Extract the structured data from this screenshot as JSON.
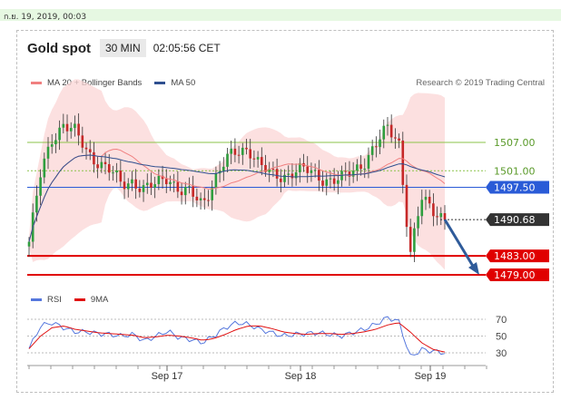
{
  "datetime": "ก.ย. 19, 2019, 00:03",
  "header": {
    "title": "Gold spot",
    "timeframe": "30 MIN",
    "clock": "02:05:56 CET"
  },
  "legend": {
    "items": [
      {
        "label": "MA 20 + Bollinger Bands",
        "color": "#f08080"
      },
      {
        "label": "MA 50",
        "color": "#2f4f8f"
      }
    ],
    "credit": "Research © 2019 Trading Central"
  },
  "rsi_legend": {
    "items": [
      {
        "label": "RSI",
        "color": "#5577dd"
      },
      {
        "label": "9MA",
        "color": "#e01010"
      }
    ]
  },
  "chart_data": {
    "type": "candlestick",
    "instrument": "Gold spot",
    "timeframe": "30 MIN",
    "x_ticks": [
      "Sep 17",
      "Sep 18",
      "Sep 19"
    ],
    "levels": [
      {
        "value": 1507.0,
        "label": "1507.00",
        "kind": "resistance",
        "color": "#8bc34a"
      },
      {
        "value": 1501.0,
        "label": "1501.00",
        "kind": "pivot",
        "color": "#8bc34a"
      },
      {
        "value": 1497.5,
        "label": "1497.50",
        "kind": "current-level",
        "color": "#2a5bd7"
      },
      {
        "value": 1490.68,
        "label": "1490.68",
        "kind": "last-price",
        "color": "#333333"
      },
      {
        "value": 1483.0,
        "label": "1483.00",
        "kind": "support",
        "color": "#e00000"
      },
      {
        "value": 1479.0,
        "label": "1479.00",
        "kind": "support",
        "color": "#e00000"
      }
    ],
    "arrow": {
      "from": 1490.68,
      "to": 1479.0,
      "direction": "down",
      "color": "#2f5b9a"
    },
    "price_path": [
      1486,
      1500,
      1508,
      1511,
      1509,
      1505,
      1503,
      1501,
      1498,
      1499,
      1497,
      1498,
      1500,
      1497,
      1496,
      1494,
      1499,
      1503,
      1505,
      1506,
      1502,
      1500,
      1500,
      1501,
      1501,
      1500,
      1499,
      1499,
      1501,
      1503,
      1506,
      1510,
      1508,
      1483,
      1495,
      1493,
      1491
    ],
    "rsi": {
      "levels": [
        70,
        50,
        30
      ],
      "rsi_values": [
        35,
        62,
        66,
        60,
        55,
        55,
        53,
        52,
        50,
        52,
        44,
        50,
        56,
        48,
        46,
        42,
        50,
        60,
        66,
        64,
        58,
        54,
        50,
        52,
        53,
        54,
        52,
        50,
        54,
        58,
        64,
        72,
        68,
        25,
        34,
        32,
        30
      ],
      "ma9_values": [
        35,
        50,
        60,
        62,
        58,
        56,
        54,
        53,
        52,
        51,
        48,
        49,
        51,
        50,
        48,
        45,
        47,
        52,
        58,
        62,
        62,
        59,
        55,
        53,
        52,
        53,
        53,
        52,
        53,
        55,
        58,
        63,
        66,
        55,
        42,
        34,
        31
      ]
    }
  }
}
